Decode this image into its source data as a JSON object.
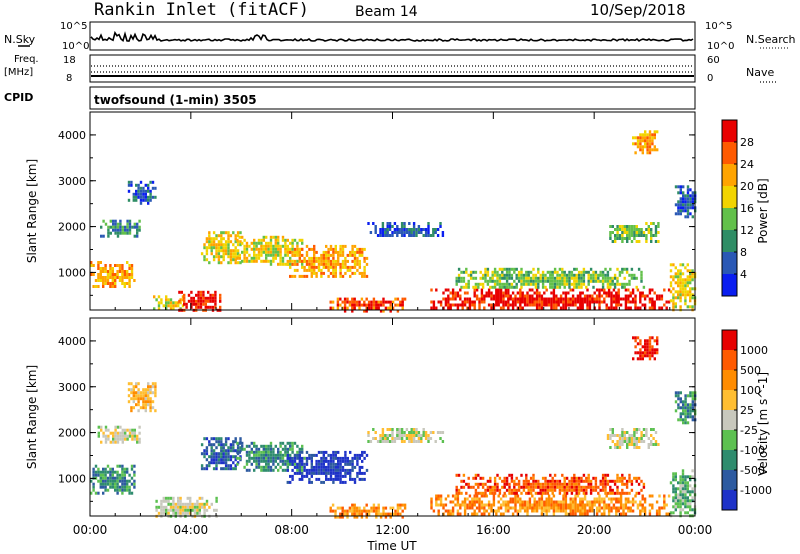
{
  "header": {
    "title": "Rankin Inlet (fitACF)",
    "beam": "Beam 14",
    "date": "10/Sep/2018"
  },
  "params_panel": {
    "nsky_label": "N.Sky",
    "nsky_ticks": [
      "10^5",
      "10^0"
    ],
    "nsearch_label": "N.Search",
    "nsearch_ticks": [
      "10^5",
      "10^0"
    ],
    "freq_label": "Freq.",
    "freq_unit": "[MHz]",
    "freq_ticks": [
      "18",
      "8"
    ],
    "nave_label": "Nave",
    "nave_ticks": [
      "60",
      "0"
    ],
    "cpid_label": "CPID",
    "cpid_value": "twofsound (1-min) 3505"
  },
  "chart_data": [
    {
      "type": "heatmap",
      "name": "power",
      "ylabel": "Slant Range [km]",
      "xlabel": "Time UT",
      "yticks": [
        "4000",
        "3000",
        "2000",
        "1000"
      ],
      "ylim": [
        180,
        4500
      ],
      "colorbar_label": "Power [dB]",
      "colorbar_ticks": [
        "28",
        "24",
        "20",
        "16",
        "12",
        "8",
        "4"
      ],
      "colorbar_colors": [
        "#0a1ef0",
        "#2a58b5",
        "#2f8d65",
        "#62c04a",
        "#f2d400",
        "#ffa400",
        "#ff5a00",
        "#e80000"
      ],
      "clusters": [
        {
          "t0": 0.0,
          "t1": 1.8,
          "r0": 700,
          "r1": 1250,
          "level": 5
        },
        {
          "t0": 0.3,
          "t1": 2.0,
          "r0": 1800,
          "r1": 2150,
          "level": 2
        },
        {
          "t0": 1.5,
          "t1": 2.6,
          "r0": 2500,
          "r1": 3000,
          "level": 1
        },
        {
          "t0": 2.5,
          "t1": 3.7,
          "r0": 200,
          "r1": 500,
          "level": 4
        },
        {
          "t0": 3.5,
          "t1": 5.2,
          "r0": 180,
          "r1": 600,
          "level": 7
        },
        {
          "t0": 4.4,
          "t1": 6.0,
          "r0": 1200,
          "r1": 1900,
          "level": 4
        },
        {
          "t0": 5.8,
          "t1": 8.5,
          "r0": 1200,
          "r1": 1800,
          "level": 4
        },
        {
          "t0": 7.8,
          "t1": 11.0,
          "r0": 900,
          "r1": 1600,
          "level": 5
        },
        {
          "t0": 9.5,
          "t1": 12.5,
          "r0": 180,
          "r1": 450,
          "level": 6
        },
        {
          "t0": 11.0,
          "t1": 14.0,
          "r0": 1800,
          "r1": 2100,
          "level": 1
        },
        {
          "t0": 13.5,
          "t1": 23.0,
          "r0": 200,
          "r1": 650,
          "level": 7
        },
        {
          "t0": 14.5,
          "t1": 22.0,
          "r0": 650,
          "r1": 1100,
          "level": 3
        },
        {
          "t0": 20.5,
          "t1": 22.5,
          "r0": 1700,
          "r1": 2100,
          "level": 3
        },
        {
          "t0": 21.5,
          "t1": 22.5,
          "r0": 3600,
          "r1": 4100,
          "level": 5
        },
        {
          "t0": 23.0,
          "t1": 24.0,
          "r0": 200,
          "r1": 1200,
          "level": 4
        },
        {
          "t0": 23.2,
          "t1": 24.0,
          "r0": 2200,
          "r1": 2900,
          "level": 1
        }
      ]
    },
    {
      "type": "heatmap",
      "name": "velocity",
      "ylabel": "Slant Range [km]",
      "xlabel": "Time UT",
      "yticks": [
        "4000",
        "3000",
        "2000",
        "1000"
      ],
      "ylim": [
        180,
        4500
      ],
      "xticks": [
        "00:00",
        "04:00",
        "08:00",
        "12:00",
        "16:00",
        "20:00",
        "00:00"
      ],
      "colorbar_label": "Velocity [m s^-1]",
      "colorbar_ticks": [
        "1000",
        "500",
        "100",
        "25",
        "-25",
        "-100",
        "-500",
        "-1000"
      ],
      "colorbar_colors": [
        "#1e32c8",
        "#2d5aa0",
        "#2f8c6e",
        "#5cc050",
        "#c8c8bd",
        "#ffbe32",
        "#ff8c00",
        "#ff5a00",
        "#e60000"
      ],
      "clusters": [
        {
          "t0": 0.0,
          "t1": 1.8,
          "r0": 700,
          "r1": 1300,
          "level": 2
        },
        {
          "t0": 0.3,
          "t1": 2.0,
          "r0": 1800,
          "r1": 2150,
          "level": 4
        },
        {
          "t0": 1.5,
          "t1": 2.6,
          "r0": 2500,
          "r1": 3100,
          "level": 5
        },
        {
          "t0": 2.5,
          "t1": 5.0,
          "r0": 180,
          "r1": 600,
          "level": 4
        },
        {
          "t0": 4.4,
          "t1": 6.0,
          "r0": 1200,
          "r1": 1900,
          "level": 1
        },
        {
          "t0": 5.8,
          "t1": 8.5,
          "r0": 1200,
          "r1": 1800,
          "level": 2
        },
        {
          "t0": 7.8,
          "t1": 11.0,
          "r0": 900,
          "r1": 1600,
          "level": 0
        },
        {
          "t0": 9.5,
          "t1": 12.5,
          "r0": 180,
          "r1": 450,
          "level": 6
        },
        {
          "t0": 11.0,
          "t1": 14.0,
          "r0": 1800,
          "r1": 2100,
          "level": 4
        },
        {
          "t0": 13.5,
          "t1": 23.0,
          "r0": 200,
          "r1": 650,
          "level": 6
        },
        {
          "t0": 14.5,
          "t1": 22.0,
          "r0": 650,
          "r1": 1100,
          "level": 7
        },
        {
          "t0": 20.5,
          "t1": 22.5,
          "r0": 1700,
          "r1": 2100,
          "level": 4
        },
        {
          "t0": 21.5,
          "t1": 22.5,
          "r0": 3600,
          "r1": 4100,
          "level": 8
        },
        {
          "t0": 23.0,
          "t1": 24.0,
          "r0": 200,
          "r1": 1200,
          "level": 3
        },
        {
          "t0": 23.2,
          "t1": 24.0,
          "r0": 2200,
          "r1": 2900,
          "level": 2
        }
      ]
    }
  ]
}
